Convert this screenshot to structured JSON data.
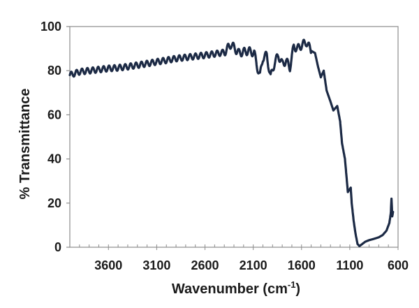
{
  "chart_data": {
    "type": "line",
    "xlabel": "Wavenumber (cm",
    "xlabel_sup": "-1",
    "xlabel_suffix": ")",
    "ylabel": "% Transmittance",
    "xlim": [
      4000,
      600
    ],
    "ylim": [
      0,
      100
    ],
    "x_reversed": true,
    "x_ticks": [
      3600,
      3100,
      2600,
      2100,
      1600,
      1100,
      600
    ],
    "y_ticks": [
      0,
      20,
      40,
      60,
      80,
      100
    ],
    "grid": false,
    "legend": "none",
    "line_color": "#1c2a45",
    "series": [
      {
        "values": [
          [
            4000,
            78
          ],
          [
            3900,
            79.5
          ],
          [
            3800,
            80
          ],
          [
            3700,
            80.5
          ],
          [
            3600,
            81
          ],
          [
            3500,
            81.3
          ],
          [
            3400,
            81.8
          ],
          [
            3300,
            82.5
          ],
          [
            3200,
            83.2
          ],
          [
            3100,
            84
          ],
          [
            3000,
            84.7
          ],
          [
            2900,
            85.5
          ],
          [
            2800,
            86
          ],
          [
            2700,
            86.5
          ],
          [
            2600,
            87
          ],
          [
            2500,
            87.6
          ],
          [
            2400,
            88.3
          ],
          [
            2330,
            92
          ],
          [
            2250,
            88
          ],
          [
            2150,
            89
          ],
          [
            2090,
            88
          ],
          [
            2060,
            82
          ],
          [
            2030,
            77.5
          ],
          [
            2000,
            86
          ],
          [
            1960,
            87
          ],
          [
            1920,
            77
          ],
          [
            1880,
            83.5
          ],
          [
            1840,
            87
          ],
          [
            1800,
            83
          ],
          [
            1760,
            84.5
          ],
          [
            1720,
            81.5
          ],
          [
            1680,
            91
          ],
          [
            1640,
            90
          ],
          [
            1600,
            91.5
          ],
          [
            1550,
            93
          ],
          [
            1500,
            89
          ],
          [
            1460,
            88
          ],
          [
            1430,
            82
          ],
          [
            1400,
            77
          ],
          [
            1370,
            80
          ],
          [
            1340,
            71
          ],
          [
            1300,
            66
          ],
          [
            1270,
            62
          ],
          [
            1230,
            64
          ],
          [
            1200,
            57
          ],
          [
            1180,
            47
          ],
          [
            1150,
            40
          ],
          [
            1120,
            25
          ],
          [
            1090,
            27
          ],
          [
            1080,
            20
          ],
          [
            1060,
            12
          ],
          [
            1040,
            6
          ],
          [
            1020,
            1.5
          ],
          [
            1000,
            0.5
          ],
          [
            970,
            1.5
          ],
          [
            940,
            2.5
          ],
          [
            900,
            3.2
          ],
          [
            850,
            3.8
          ],
          [
            800,
            4.5
          ],
          [
            760,
            5.5
          ],
          [
            720,
            7.5
          ],
          [
            690,
            11
          ],
          [
            675,
            15.5
          ],
          [
            668,
            22
          ],
          [
            660,
            14
          ],
          [
            652,
            16
          ]
        ]
      }
    ]
  }
}
